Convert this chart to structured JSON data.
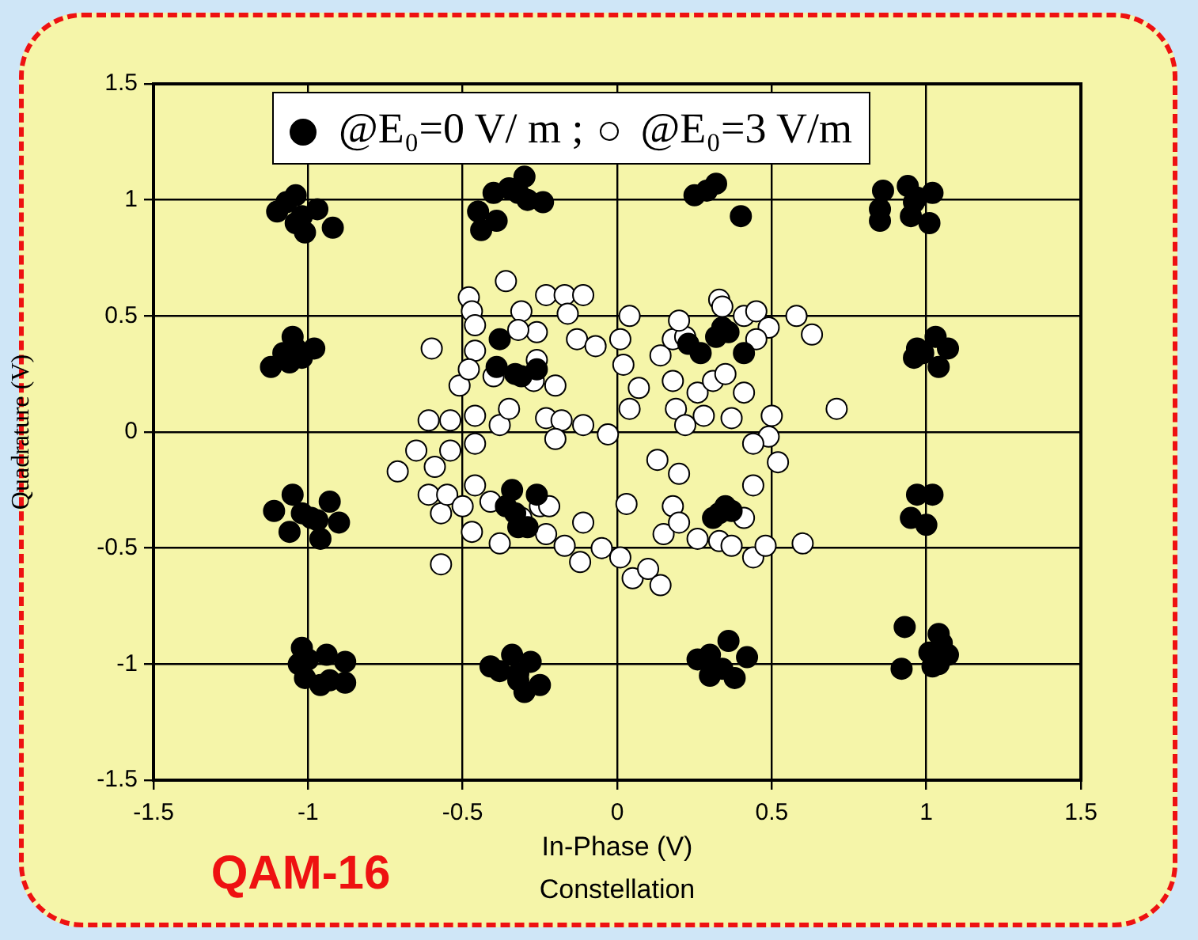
{
  "chart_data": {
    "type": "scatter",
    "xlabel": "In-Phase (V)",
    "ylabel": "Quadrature (V)",
    "annotations": [
      "QAM-16",
      "Constellation"
    ],
    "xlim": [
      -1.5,
      1.5
    ],
    "ylim": [
      -1.5,
      1.5
    ],
    "xticks": [
      -1.5,
      -1,
      -0.5,
      0,
      0.5,
      1,
      1.5
    ],
    "yticks": [
      -1.5,
      -1,
      -0.5,
      0,
      0.5,
      1,
      1.5
    ],
    "grid": true,
    "legend": "top",
    "marker": "circle",
    "series": [
      {
        "name": "@E₀=0 V/ m ;",
        "color": "#000000",
        "x": [
          -1.04,
          -1.1,
          -0.97,
          -0.92,
          -1.01,
          -1.04,
          -1.07,
          -1.02,
          -0.45,
          -0.4,
          -0.35,
          -0.3,
          -0.32,
          -0.24,
          -0.39,
          -0.44,
          -0.29,
          0.25,
          0.29,
          0.32,
          0.4,
          0.86,
          0.85,
          0.85,
          0.94,
          0.96,
          0.95,
          1.02,
          1.01,
          0.97,
          -1.12,
          -1.08,
          -1.05,
          -1.02,
          -0.98,
          -1.06,
          -1.04,
          -0.38,
          -0.39,
          -0.33,
          -0.26,
          -0.31,
          0.23,
          0.27,
          0.32,
          0.34,
          0.41,
          0.36,
          0.97,
          0.96,
          1.03,
          1.07,
          1.04,
          0.99,
          -1.11,
          -1.05,
          -1.06,
          -1.02,
          -0.97,
          -0.93,
          -0.96,
          -0.9,
          -0.99,
          -0.34,
          -0.36,
          -0.32,
          -0.29,
          -0.26,
          -0.33,
          0.35,
          0.33,
          0.37,
          0.31,
          0.97,
          1.02,
          0.95,
          1.0,
          -1.02,
          -1.03,
          -1.01,
          -0.96,
          -0.93,
          -0.94,
          -0.88,
          -0.88,
          -1.0,
          -0.41,
          -0.34,
          -0.28,
          -0.32,
          -0.3,
          -0.25,
          -0.38,
          -0.32,
          0.26,
          0.3,
          0.36,
          0.42,
          0.3,
          0.38,
          0.34,
          0.93,
          0.92,
          1.04,
          1.05,
          1.01,
          1.07,
          1.02,
          1.04
        ],
        "values": [
          1.02,
          0.95,
          0.96,
          0.88,
          0.86,
          0.9,
          0.99,
          0.93,
          0.95,
          1.03,
          1.05,
          1.1,
          1.03,
          0.99,
          0.91,
          0.87,
          1.0,
          1.02,
          1.04,
          1.07,
          0.93,
          1.04,
          0.96,
          0.91,
          1.06,
          0.99,
          0.93,
          1.03,
          0.9,
          1.01,
          0.28,
          0.34,
          0.41,
          0.32,
          0.36,
          0.3,
          0.36,
          0.4,
          0.28,
          0.25,
          0.27,
          0.24,
          0.38,
          0.34,
          0.41,
          0.45,
          0.34,
          0.43,
          0.36,
          0.32,
          0.41,
          0.36,
          0.28,
          0.34,
          -0.34,
          -0.27,
          -0.43,
          -0.35,
          -0.38,
          -0.3,
          -0.46,
          -0.39,
          -0.37,
          -0.25,
          -0.32,
          -0.41,
          -0.41,
          -0.27,
          -0.35,
          -0.32,
          -0.35,
          -0.34,
          -0.37,
          -0.27,
          -0.27,
          -0.37,
          -0.4,
          -0.93,
          -1.0,
          -1.06,
          -1.09,
          -1.07,
          -0.96,
          -0.99,
          -1.08,
          -0.98,
          -1.01,
          -0.96,
          -0.99,
          -1.07,
          -1.12,
          -1.09,
          -1.03,
          -1.04,
          -0.98,
          -0.96,
          -0.9,
          -0.97,
          -1.05,
          -1.06,
          -1.02,
          -0.84,
          -1.02,
          -0.87,
          -0.91,
          -0.95,
          -0.96,
          -1.01,
          -1.0
        ]
      },
      {
        "name": "@E₀=3 V/m",
        "color": "#ffffff",
        "x": [
          -0.36,
          -0.48,
          -0.47,
          -0.46,
          -0.31,
          -0.23,
          -0.17,
          -0.11,
          -0.16,
          -0.26,
          -0.32,
          -0.13,
          -0.07,
          0.01,
          0.04,
          0.02,
          0.07,
          0.04,
          -0.03,
          -0.6,
          -0.51,
          -0.46,
          -0.48,
          -0.4,
          -0.26,
          -0.2,
          -0.27,
          -0.61,
          -0.54,
          -0.46,
          -0.38,
          -0.35,
          -0.23,
          -0.18,
          -0.11,
          -0.2,
          -0.46,
          -0.54,
          -0.65,
          -0.71,
          -0.59,
          -0.61,
          -0.57,
          -0.55,
          -0.46,
          -0.5,
          -0.41,
          -0.57,
          -0.47,
          -0.38,
          -0.31,
          -0.25,
          -0.23,
          -0.22,
          -0.17,
          -0.12,
          -0.11,
          -0.05,
          0.01,
          0.03,
          0.05,
          0.1,
          0.14,
          0.15,
          0.18,
          0.2,
          0.26,
          0.33,
          0.37,
          0.44,
          0.48,
          0.41,
          0.44,
          0.52,
          0.49,
          0.6,
          0.14,
          0.18,
          0.22,
          0.2,
          0.33,
          0.34,
          0.41,
          0.45,
          0.49,
          0.45,
          0.58,
          0.63,
          0.71,
          0.5,
          0.41,
          0.37,
          0.28,
          0.19,
          0.18,
          0.26,
          0.31,
          0.22,
          0.44,
          0.13,
          0.2,
          0.35
        ],
        "values": [
          0.65,
          0.58,
          0.52,
          0.46,
          0.52,
          0.59,
          0.59,
          0.59,
          0.51,
          0.43,
          0.44,
          0.4,
          0.37,
          0.4,
          0.5,
          0.29,
          0.19,
          0.1,
          -0.01,
          0.36,
          0.2,
          0.35,
          0.27,
          0.24,
          0.31,
          0.2,
          0.22,
          0.05,
          0.05,
          0.07,
          0.03,
          0.1,
          0.06,
          0.05,
          0.03,
          -0.03,
          -0.05,
          -0.08,
          -0.08,
          -0.17,
          -0.15,
          -0.27,
          -0.35,
          -0.27,
          -0.23,
          -0.32,
          -0.3,
          -0.57,
          -0.43,
          -0.48,
          -0.37,
          -0.32,
          -0.44,
          -0.32,
          -0.49,
          -0.56,
          -0.39,
          -0.5,
          -0.54,
          -0.31,
          -0.63,
          -0.59,
          -0.66,
          -0.44,
          -0.32,
          -0.39,
          -0.46,
          -0.47,
          -0.49,
          -0.54,
          -0.49,
          -0.37,
          -0.23,
          -0.13,
          -0.02,
          -0.48,
          0.33,
          0.4,
          0.41,
          0.48,
          0.57,
          0.54,
          0.5,
          0.52,
          0.45,
          0.4,
          0.5,
          0.42,
          0.1,
          0.07,
          0.17,
          0.06,
          0.07,
          0.1,
          0.22,
          0.17,
          0.22,
          0.03,
          -0.05,
          -0.12,
          -0.18,
          0.25
        ]
      }
    ]
  }
}
